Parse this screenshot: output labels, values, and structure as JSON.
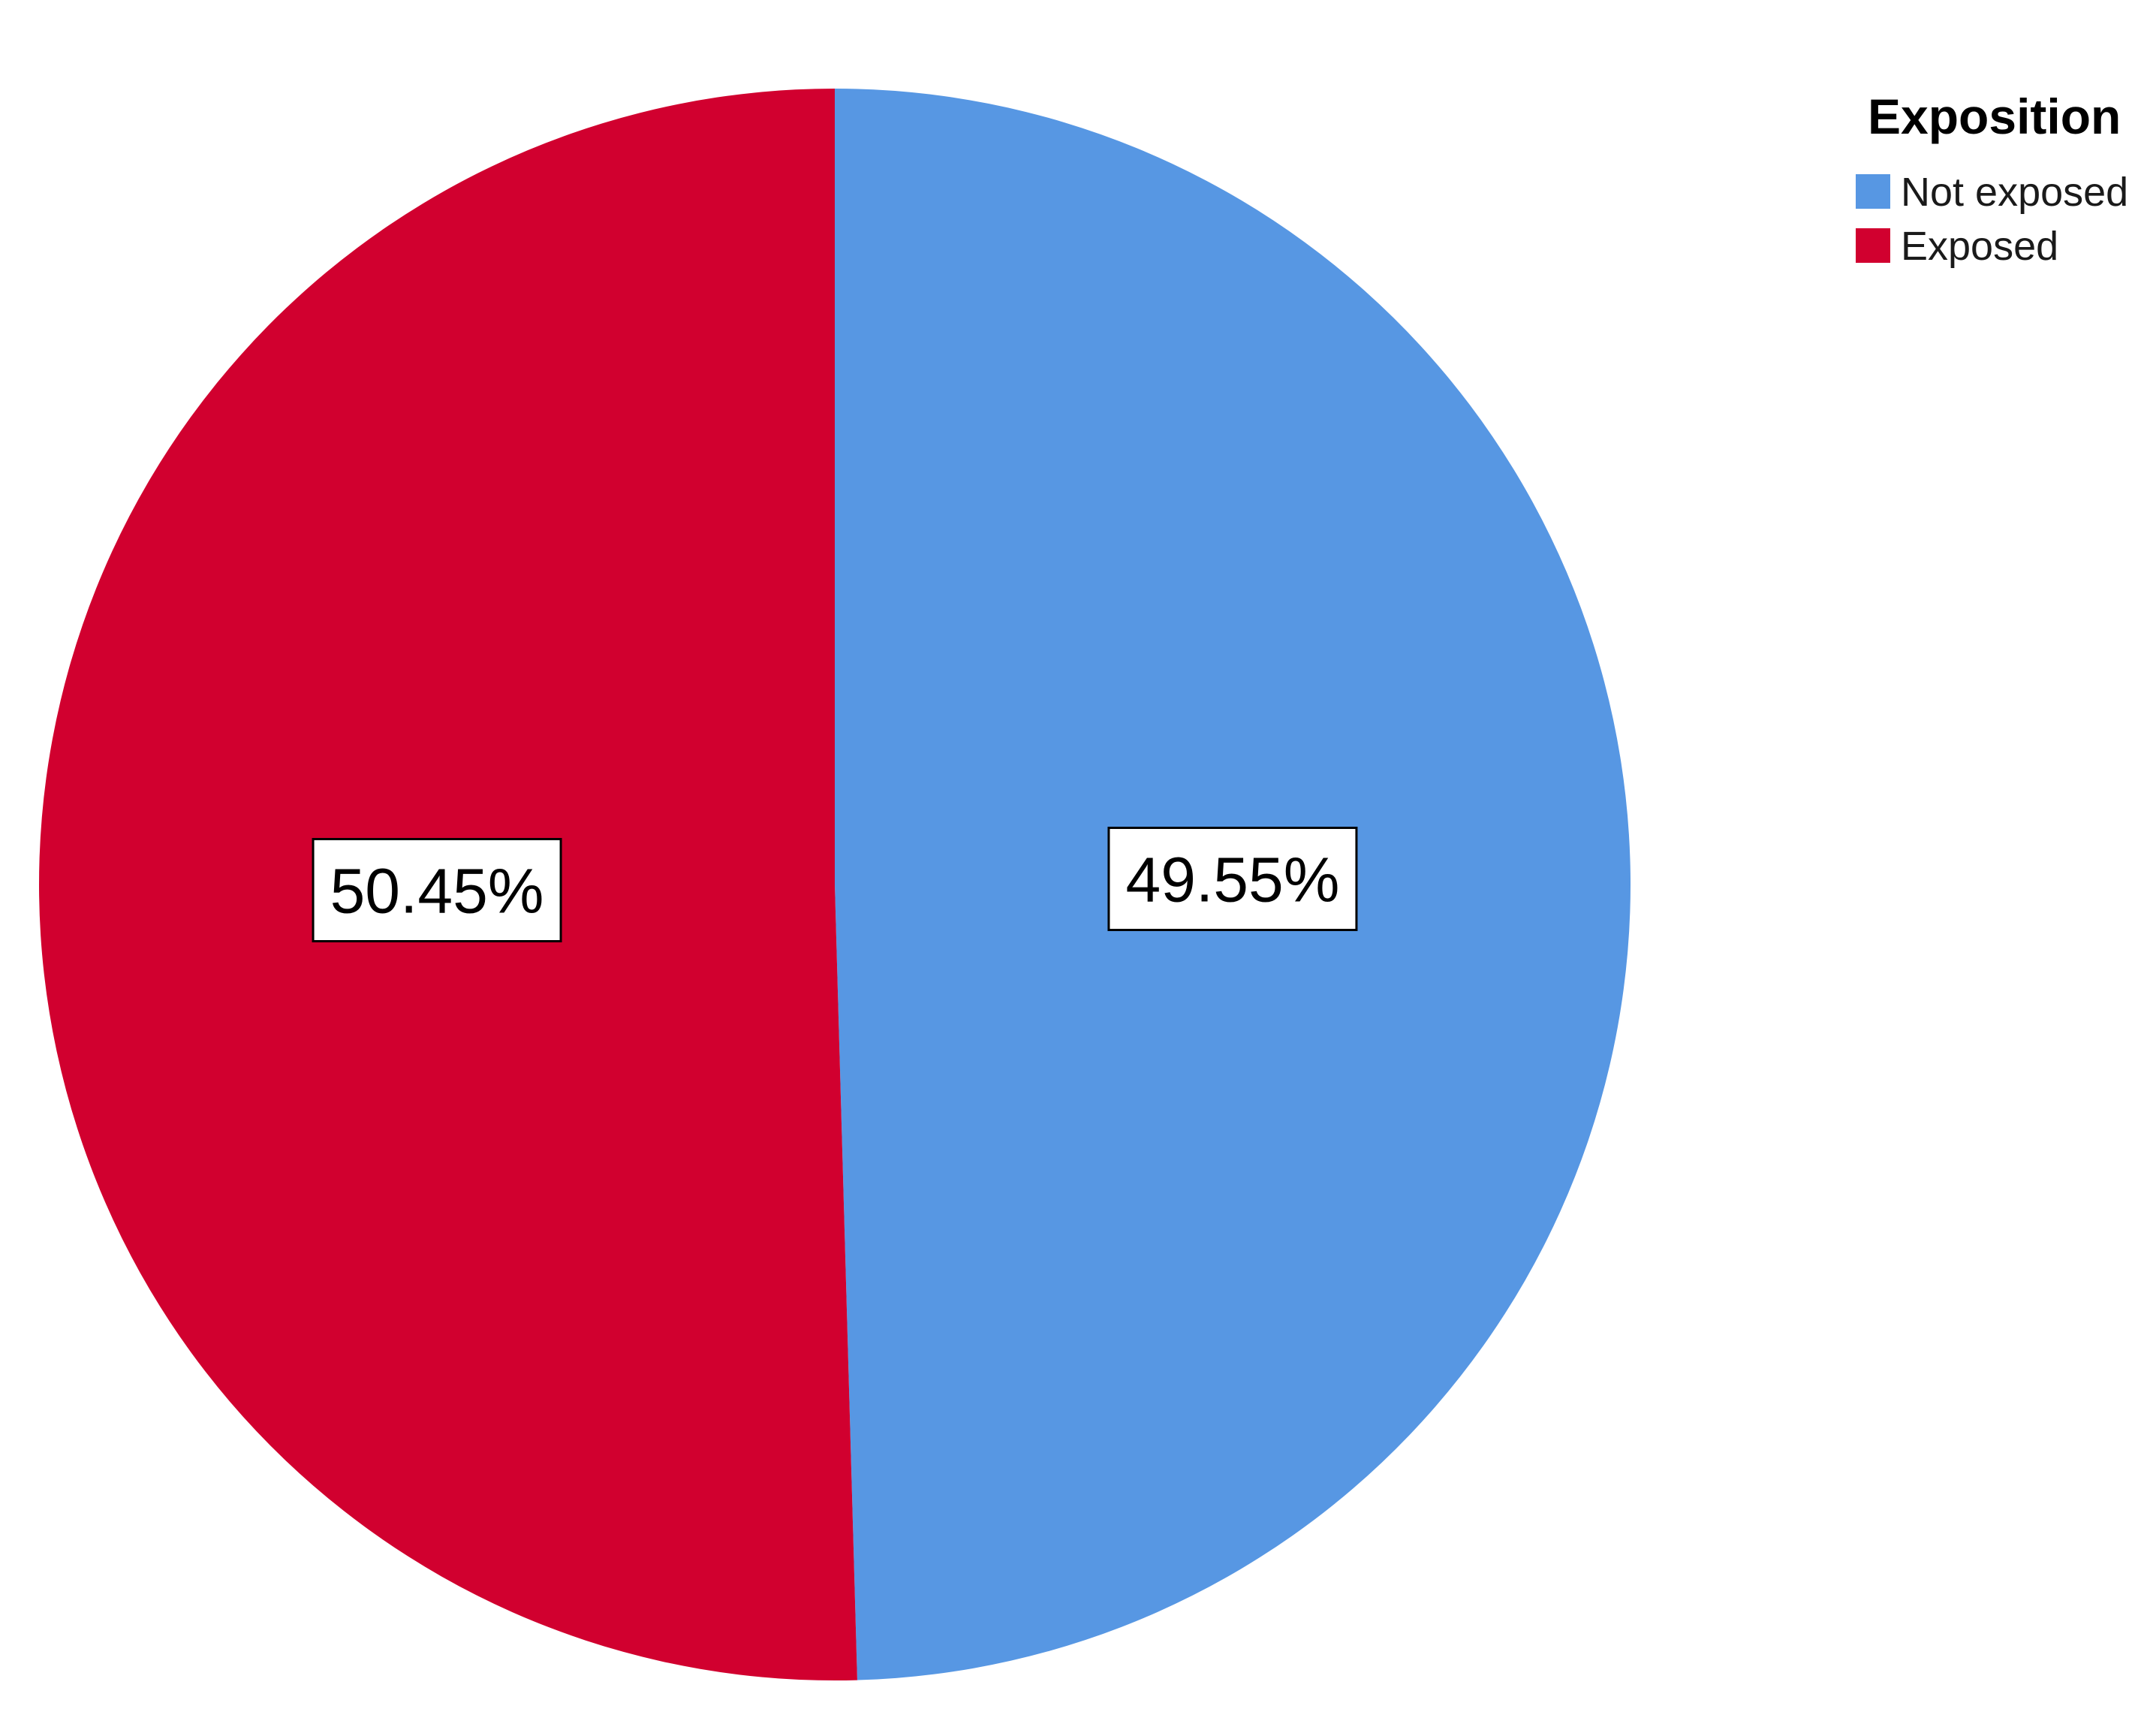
{
  "chart_data": {
    "type": "pie",
    "title": "",
    "legend_title": "Exposition",
    "legend_position": "top-right",
    "start_angle_deg": 0,
    "direction": "clockwise",
    "categories": [
      "Not exposed",
      "Exposed"
    ],
    "values": [
      49.55,
      50.45
    ],
    "data_labels": [
      "49.55%",
      "50.45%"
    ],
    "colors": [
      "#5797e3",
      "#d1002f"
    ]
  }
}
